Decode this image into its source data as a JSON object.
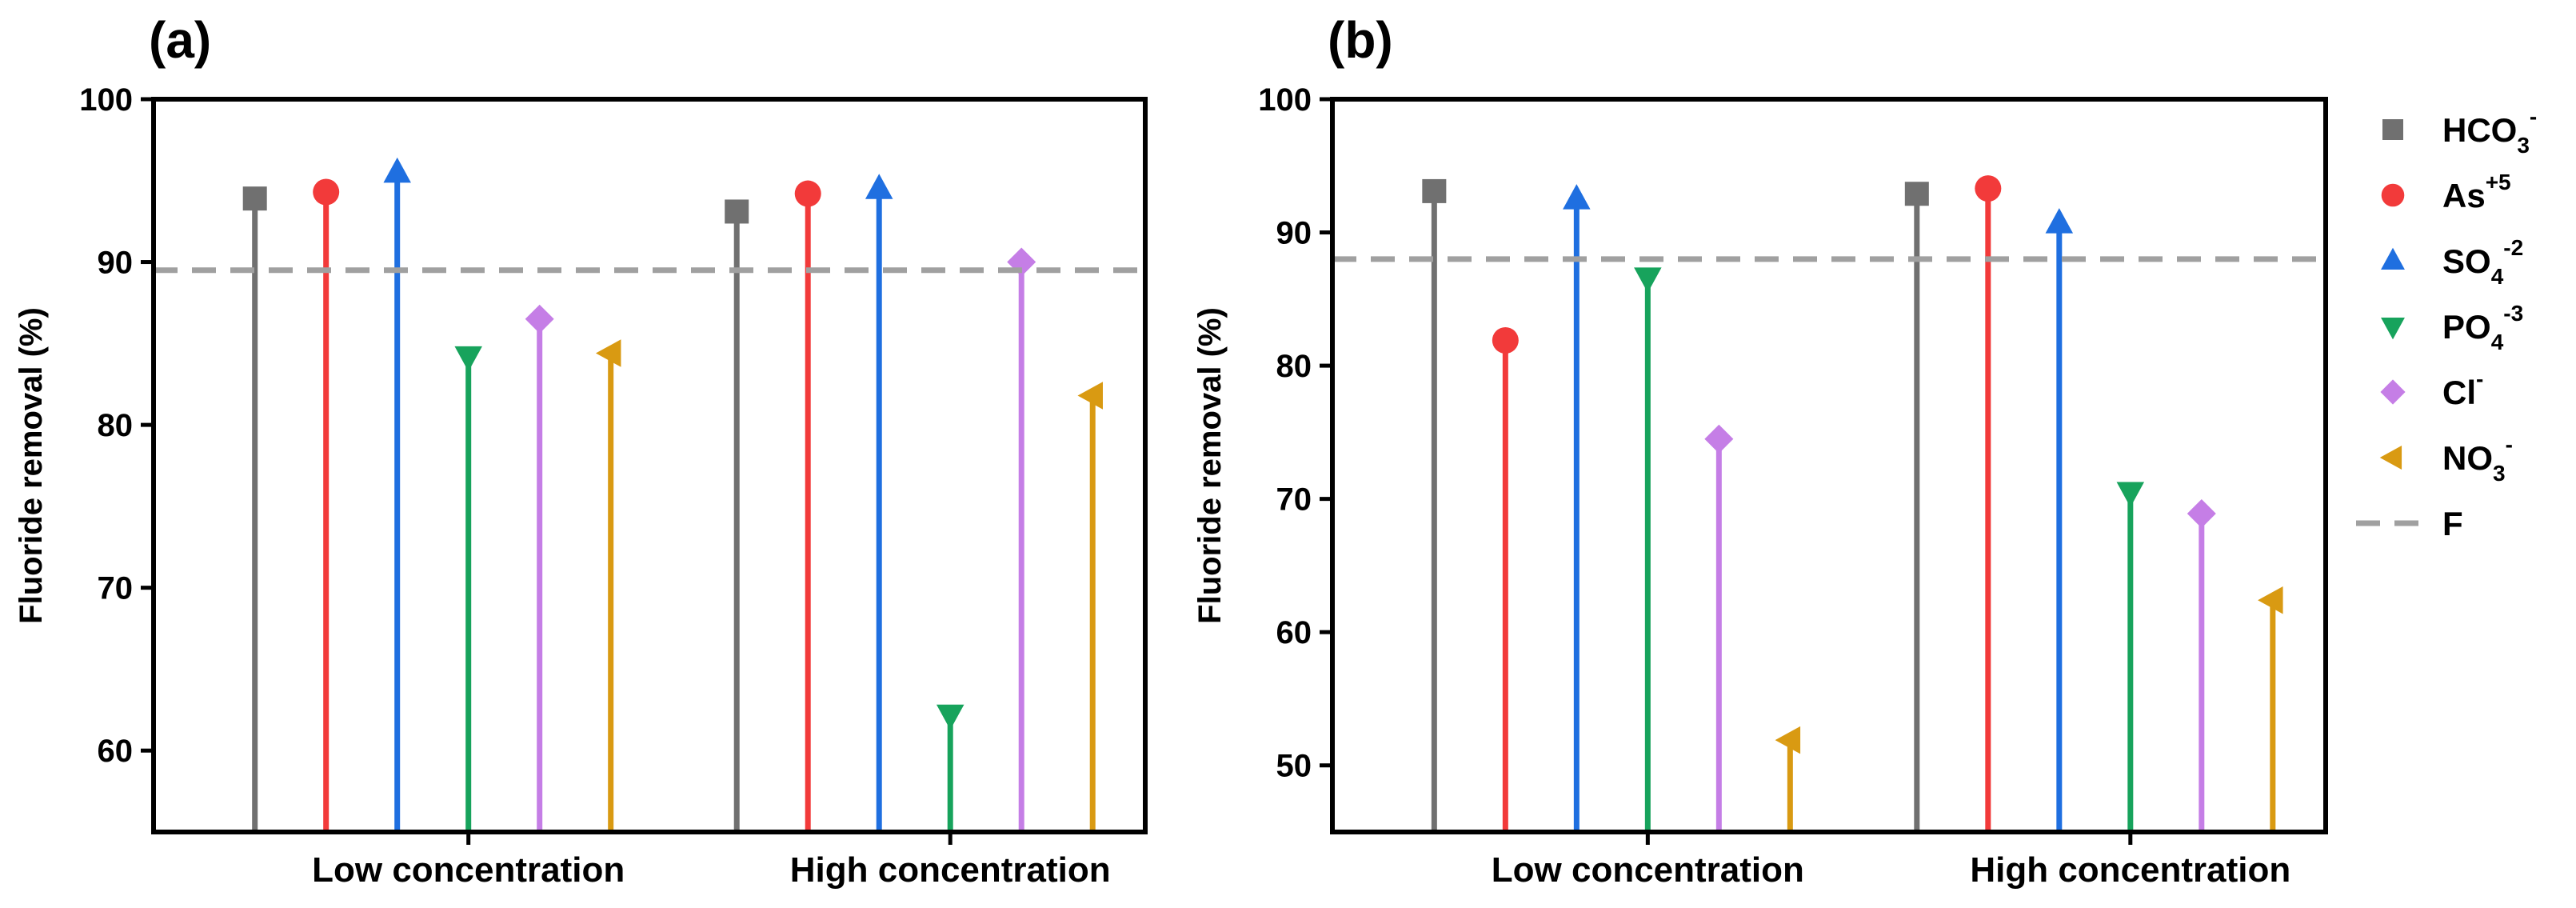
{
  "legend": {
    "entries": [
      {
        "key": "HCO3",
        "base": "HCO",
        "sub": "3",
        "sup": "-",
        "color": "#707070",
        "marker": "square"
      },
      {
        "key": "As",
        "base": "As",
        "sub": "",
        "sup": "+5",
        "color": "#f23a3a",
        "marker": "circle"
      },
      {
        "key": "SO4",
        "base": "SO",
        "sub": "4",
        "sup": "-2",
        "color": "#1f6fe0",
        "marker": "triangle-up"
      },
      {
        "key": "PO4",
        "base": "PO",
        "sub": "4",
        "sup": "-3",
        "color": "#17a35c",
        "marker": "triangle-down"
      },
      {
        "key": "Cl",
        "base": "Cl",
        "sub": "",
        "sup": "-",
        "color": "#c57ee6",
        "marker": "diamond"
      },
      {
        "key": "NO3",
        "base": "NO",
        "sub": "3",
        "sup": "-",
        "color": "#d99a12",
        "marker": "triangle-left"
      },
      {
        "key": "F",
        "base": "F",
        "sub": "",
        "sup": "",
        "color": "#a0a0a0",
        "marker": "dashed-line"
      }
    ]
  },
  "chart_data": [
    {
      "panel_label": "(a)",
      "type": "lollipop",
      "ylabel": "Fluoride removal (%)",
      "ylim": [
        55,
        100
      ],
      "yticks": [
        60,
        70,
        80,
        90,
        100
      ],
      "categories": [
        "Low concentration",
        "High concentration"
      ],
      "reference_line": {
        "name": "F",
        "value": 89.5
      },
      "series": [
        {
          "name": "HCO3",
          "values": [
            93.9,
            93.1
          ]
        },
        {
          "name": "As",
          "values": [
            94.3,
            94.2
          ]
        },
        {
          "name": "SO4",
          "values": [
            95.5,
            94.5
          ]
        },
        {
          "name": "PO4",
          "values": [
            84.2,
            62.2
          ]
        },
        {
          "name": "Cl",
          "values": [
            86.5,
            90.0
          ]
        },
        {
          "name": "NO3",
          "values": [
            84.4,
            81.8
          ]
        }
      ]
    },
    {
      "panel_label": "(b)",
      "type": "lollipop",
      "ylabel": "Fluoride removal (%)",
      "ylim": [
        45,
        100
      ],
      "yticks": [
        50,
        60,
        70,
        80,
        90,
        100
      ],
      "categories": [
        "Low concentration",
        "High concentration"
      ],
      "reference_line": {
        "name": "F",
        "value": 88.0
      },
      "series": [
        {
          "name": "HCO3",
          "values": [
            93.1,
            92.9
          ]
        },
        {
          "name": "As",
          "values": [
            81.9,
            93.3
          ]
        },
        {
          "name": "SO4",
          "values": [
            92.5,
            90.7
          ]
        },
        {
          "name": "PO4",
          "values": [
            86.6,
            70.5
          ]
        },
        {
          "name": "Cl",
          "values": [
            74.5,
            68.9
          ]
        },
        {
          "name": "NO3",
          "values": [
            51.9,
            62.4
          ]
        }
      ]
    }
  ]
}
